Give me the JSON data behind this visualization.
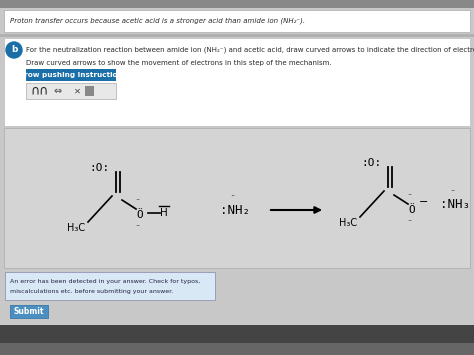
{
  "bg_color": "#c8c8c8",
  "white": "#ffffff",
  "light_gray": "#e8e8e8",
  "mid_gray": "#b0b0b0",
  "mol_area_bg": "#d4d4d4",
  "title_text": "Proton transfer occurs because acetic acid is a stronger acid than amide ion (NH₂⁻).",
  "q_text1": "For the neutralization reaction between ",
  "q_bold1": "amide ion (NH₂⁻)",
  "q_text2": " and ",
  "q_bold2": "acetic acid",
  "q_text3": ", draw curved arrows to indicate the direction of electron flow.",
  "instruction_text": "Draw curved arrows to show the movement of electrons in this step of the mechanism.",
  "arrow_btn_text": "Arrow pushing Instructions",
  "arrow_btn_bg": "#1a6fa8",
  "error_text1": "An error has been detected in your answer. Check for typos,",
  "error_text2": "miscalculations etc. before submitting your answer.",
  "error_bg": "#d8e8f5",
  "submit_btn_text": "Submit",
  "submit_btn_bg": "#4a8ec2",
  "text_color": "#2a2a2a",
  "black": "#000000"
}
